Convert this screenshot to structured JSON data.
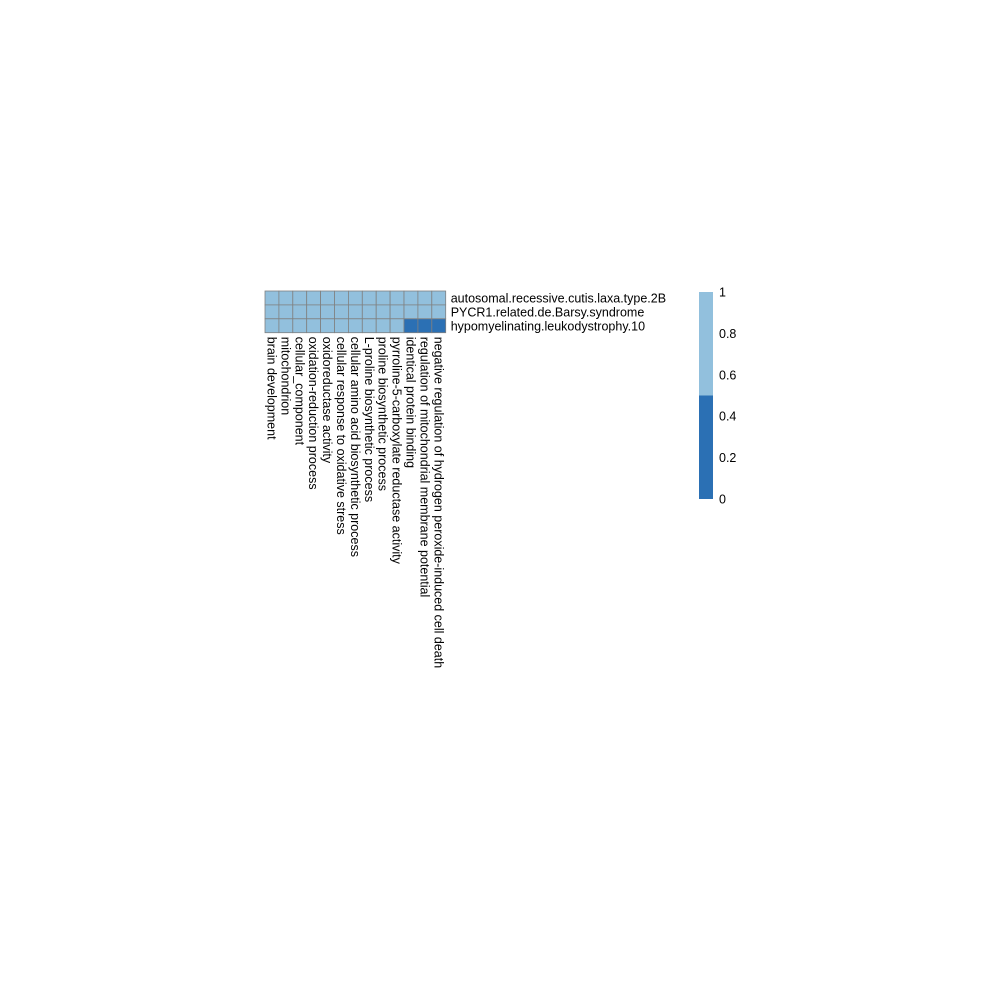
{
  "chart_data": {
    "type": "heatmap",
    "rows": [
      "autosomal.recessive.cutis.laxa.type.2B",
      "PYCR1.related.de.Barsy.syndrome",
      "hypomyelinating.leukodystrophy.10"
    ],
    "columns": [
      "brain development",
      "mitochondrion",
      "cellular_component",
      "oxidation-reduction process",
      "oxidoreductase activity",
      "cellular response to oxidative stress",
      "cellular amino acid biosynthetic process",
      "L-proline biosynthetic process",
      "proline biosynthetic process",
      "pyrroline-5-carboxylate reductase activity",
      "identical protein binding",
      "regulation of mitochondrial membrane potential",
      "negative regulation of hydrogen peroxide-induced cell death"
    ],
    "values": [
      [
        1,
        1,
        1,
        1,
        1,
        1,
        1,
        1,
        1,
        1,
        1,
        1,
        1
      ],
      [
        1,
        1,
        1,
        1,
        1,
        1,
        1,
        1,
        1,
        1,
        1,
        1,
        1
      ],
      [
        1,
        1,
        1,
        1,
        1,
        1,
        1,
        1,
        1,
        1,
        0,
        0,
        0
      ]
    ],
    "color_scale": {
      "breaks": [
        0,
        0.5,
        1
      ],
      "colors": [
        "#2b70b4",
        "#92c0dd"
      ],
      "cell_border": "#808080"
    },
    "legend": {
      "ticks": [
        "0",
        "0.2",
        "0.4",
        "0.6",
        "0.8",
        "1"
      ],
      "tick_values": [
        0,
        0.2,
        0.4,
        0.6,
        0.8,
        1
      ]
    }
  }
}
